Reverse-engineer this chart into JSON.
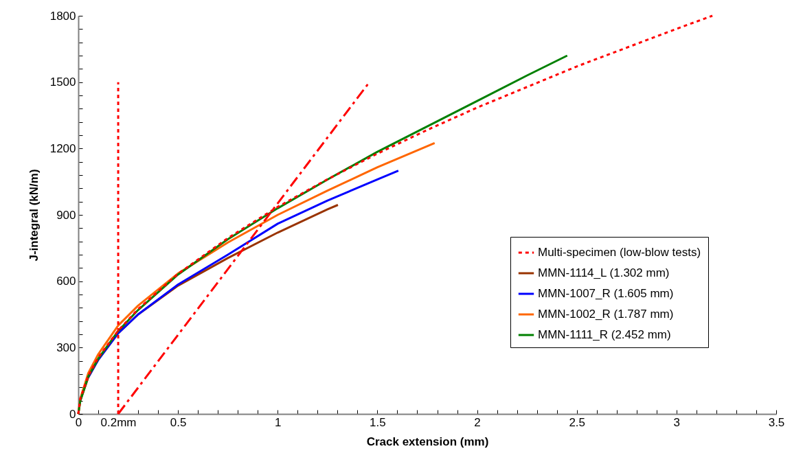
{
  "chart_data": {
    "type": "line",
    "xlabel": "Crack extension (mm)",
    "ylabel": "J-integral (kN/m)",
    "xlim": [
      0,
      3.5
    ],
    "ylim": [
      0,
      1800
    ],
    "xticks": [
      0,
      {
        "value": 0.1,
        "label": null
      },
      {
        "value": 0.2,
        "label": "0.2mm"
      },
      {
        "value": 0.3,
        "label": null
      },
      {
        "value": 0.4,
        "label": null
      },
      0.5,
      {
        "value": 0.6,
        "label": null
      },
      {
        "value": 0.7,
        "label": null
      },
      {
        "value": 0.8,
        "label": null
      },
      {
        "value": 0.9,
        "label": null
      },
      1,
      {
        "value": 1.1,
        "label": null
      },
      {
        "value": 1.2,
        "label": null
      },
      {
        "value": 1.3,
        "label": null
      },
      {
        "value": 1.4,
        "label": null
      },
      1.5,
      {
        "value": 1.6,
        "label": null
      },
      {
        "value": 1.7,
        "label": null
      },
      {
        "value": 1.8,
        "label": null
      },
      {
        "value": 1.9,
        "label": null
      },
      2,
      {
        "value": 2.1,
        "label": null
      },
      {
        "value": 2.2,
        "label": null
      },
      {
        "value": 2.3,
        "label": null
      },
      {
        "value": 2.4,
        "label": null
      },
      2.5,
      {
        "value": 2.6,
        "label": null
      },
      {
        "value": 2.7,
        "label": null
      },
      {
        "value": 2.8,
        "label": null
      },
      {
        "value": 2.9,
        "label": null
      },
      3,
      {
        "value": 3.1,
        "label": null
      },
      {
        "value": 3.2,
        "label": null
      },
      {
        "value": 3.3,
        "label": null
      },
      {
        "value": 3.4,
        "label": null
      },
      3.5
    ],
    "yticks": [
      0,
      {
        "value": 60,
        "label": null
      },
      {
        "value": 120,
        "label": null
      },
      {
        "value": 180,
        "label": null
      },
      {
        "value": 240,
        "label": null
      },
      300,
      {
        "value": 360,
        "label": null
      },
      {
        "value": 420,
        "label": null
      },
      {
        "value": 480,
        "label": null
      },
      {
        "value": 540,
        "label": null
      },
      600,
      {
        "value": 660,
        "label": null
      },
      {
        "value": 720,
        "label": null
      },
      {
        "value": 780,
        "label": null
      },
      {
        "value": 840,
        "label": null
      },
      900,
      {
        "value": 960,
        "label": null
      },
      {
        "value": 1020,
        "label": null
      },
      {
        "value": 1080,
        "label": null
      },
      {
        "value": 1140,
        "label": null
      },
      1200,
      {
        "value": 1260,
        "label": null
      },
      {
        "value": 1320,
        "label": null
      },
      {
        "value": 1380,
        "label": null
      },
      {
        "value": 1440,
        "label": null
      },
      1500,
      {
        "value": 1560,
        "label": null
      },
      {
        "value": 1620,
        "label": null
      },
      {
        "value": 1680,
        "label": null
      },
      {
        "value": 1740,
        "label": null
      },
      1800
    ],
    "grid": false,
    "legend": "bottom right",
    "marker": "none",
    "series": [
      {
        "name": "Multi-specimen (low-blow tests)",
        "color": "#ff0000",
        "line_style": "dotted",
        "x": [
          0,
          0.01,
          0.05,
          0.1,
          0.2,
          0.3,
          0.5,
          0.75,
          1.0,
          1.25,
          1.5,
          1.75,
          2.0,
          2.5,
          3.0,
          3.18
        ],
        "values": [
          0,
          69,
          172,
          255,
          377,
          474,
          633,
          795,
          936,
          1061,
          1177,
          1284,
          1385,
          1571,
          1741,
          1800
        ]
      },
      {
        "name": "MMN-1114_L (1.302 mm)",
        "color": "#993300",
        "line_style": "solid",
        "x": [
          0,
          0.01,
          0.05,
          0.1,
          0.2,
          0.3,
          0.5,
          0.75,
          1.0,
          1.25,
          1.302
        ],
        "values": [
          0,
          60,
          165,
          245,
          365,
          450,
          580,
          705,
          820,
          925,
          945
        ]
      },
      {
        "name": "MMN-1007_R (1.605 mm)",
        "color": "#0000ff",
        "line_style": "solid",
        "x": [
          0.05,
          0.1,
          0.2,
          0.3,
          0.5,
          0.75,
          1.0,
          1.25,
          1.5,
          1.605
        ],
        "values": [
          165,
          245,
          365,
          450,
          585,
          720,
          860,
          965,
          1060,
          1100
        ]
      },
      {
        "name": "MMN-1002_R (1.787 mm)",
        "color": "#ff6600",
        "line_style": "solid",
        "x": [
          0,
          0.01,
          0.05,
          0.1,
          0.2,
          0.3,
          0.5,
          0.75,
          1.0,
          1.25,
          1.5,
          1.787
        ],
        "values": [
          0,
          70,
          185,
          270,
          400,
          490,
          635,
          775,
          900,
          1010,
          1115,
          1225
        ]
      },
      {
        "name": "MMN-1111_R (2.452 mm)",
        "color": "#008000",
        "line_style": "solid",
        "x": [
          0,
          0.01,
          0.05,
          0.1,
          0.2,
          0.3,
          0.5,
          0.75,
          1.0,
          1.25,
          1.5,
          1.75,
          2.0,
          2.25,
          2.452
        ],
        "values": [
          0,
          60,
          170,
          250,
          375,
          470,
          630,
          790,
          930,
          1060,
          1185,
          1300,
          1415,
          1530,
          1620
        ]
      },
      {
        "color": "#ff0000",
        "line_style": "dotted",
        "x": [
          0.2,
          0.2
        ],
        "values": [
          0,
          1500
        ]
      },
      {
        "color": "#ff0000",
        "line_style": "dashed",
        "x": [
          0.2,
          1.46
        ],
        "values": [
          0,
          1500
        ]
      }
    ]
  }
}
